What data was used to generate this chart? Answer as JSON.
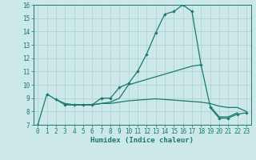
{
  "xlabel": "Humidex (Indice chaleur)",
  "background_color": "#cce8e8",
  "grid_color": "#aacfcf",
  "line_color": "#1a7a6e",
  "xlim": [
    -0.5,
    23.5
  ],
  "ylim": [
    7,
    16
  ],
  "xticks": [
    0,
    1,
    2,
    3,
    4,
    5,
    6,
    7,
    8,
    9,
    10,
    11,
    12,
    13,
    14,
    15,
    16,
    17,
    18,
    19,
    20,
    21,
    22,
    23
  ],
  "yticks": [
    7,
    8,
    9,
    10,
    11,
    12,
    13,
    14,
    15,
    16
  ],
  "line1_x": [
    0,
    1,
    2,
    3,
    4,
    5,
    6,
    7,
    8,
    9,
    10,
    11,
    12,
    13,
    14,
    15,
    16,
    17,
    18
  ],
  "line1_y": [
    7.0,
    9.3,
    8.9,
    8.5,
    8.5,
    8.5,
    8.5,
    9.0,
    9.0,
    9.8,
    10.1,
    11.0,
    12.3,
    13.9,
    15.3,
    15.5,
    16.0,
    15.5,
    11.5
  ],
  "line2_x": [
    2,
    3,
    4,
    5,
    6,
    7,
    8,
    9,
    10,
    11,
    12,
    13,
    14,
    15,
    16,
    17,
    18,
    19,
    20,
    21,
    22
  ],
  "line2_y": [
    8.9,
    8.6,
    8.5,
    8.5,
    8.5,
    8.6,
    8.7,
    9.0,
    10.0,
    10.2,
    10.4,
    10.6,
    10.8,
    11.0,
    11.2,
    11.4,
    11.5,
    8.4,
    7.6,
    7.6,
    7.9
  ],
  "line3_x": [
    3,
    4,
    5,
    6,
    7,
    8,
    9,
    10,
    11,
    12,
    13,
    14,
    15,
    16,
    17,
    18,
    19,
    20,
    21,
    22,
    23
  ],
  "line3_y": [
    8.5,
    8.5,
    8.5,
    8.5,
    8.6,
    8.6,
    8.7,
    8.8,
    8.85,
    8.9,
    8.95,
    8.9,
    8.85,
    8.8,
    8.75,
    8.7,
    8.6,
    8.4,
    8.3,
    8.3,
    8.0
  ],
  "line4_x": [
    19,
    20,
    21,
    22,
    23
  ],
  "line4_y": [
    8.3,
    7.5,
    7.5,
    7.8,
    7.9
  ]
}
